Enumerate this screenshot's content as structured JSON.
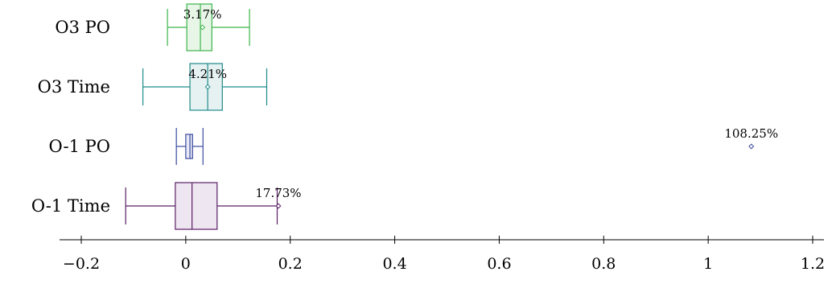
{
  "chart_data": {
    "type": "boxplot",
    "orientation": "horizontal",
    "title": "",
    "xlabel": "",
    "ylabel": "",
    "xlim": [
      -0.2,
      1.2
    ],
    "xticks": [
      -0.2,
      0,
      0.2,
      0.4,
      0.6,
      0.8,
      1,
      1.2
    ],
    "xtick_labels": [
      "−0.2",
      "0",
      "0.2",
      "0.4",
      "0.6",
      "0.8",
      "1",
      "1.2"
    ],
    "grid": false,
    "series": [
      {
        "name": "O3 PO",
        "color": "#3cb44b",
        "fill": "#e8f6e8",
        "whisker_low": -0.035,
        "q1": 0.002,
        "median": 0.028,
        "q3": 0.05,
        "whisker_high": 0.122,
        "mean": 0.032,
        "annotation": "3.17%",
        "outliers": []
      },
      {
        "name": "O3 Time",
        "color": "#1f8a8a",
        "fill": "#e6f2f2",
        "whisker_low": -0.082,
        "q1": 0.008,
        "median": 0.042,
        "q3": 0.07,
        "whisker_high": 0.155,
        "mean": 0.042,
        "annotation": "4.21%",
        "outliers": []
      },
      {
        "name": "O-1 PO",
        "color": "#3b4a9c",
        "fill": "#e7e9f5",
        "whisker_low": -0.018,
        "q1": 0.0,
        "median": 0.008,
        "q3": 0.013,
        "whisker_high": 0.033,
        "mean": 1.0825,
        "annotation": "108.25%",
        "outliers": []
      },
      {
        "name": "O-1 Time",
        "color": "#5a1f66",
        "fill": "#eee6f0",
        "whisker_low": -0.115,
        "q1": -0.02,
        "median": 0.012,
        "q3": 0.06,
        "whisker_high": 0.175,
        "mean": 0.1773,
        "annotation": "17.73%",
        "outliers": []
      }
    ]
  }
}
